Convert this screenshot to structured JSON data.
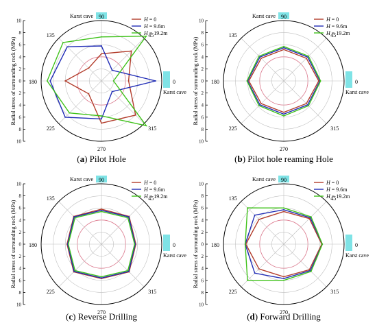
{
  "theme": {
    "colors": {
      "h0": "#b23b2a",
      "h96": "#1f2bb5",
      "h192": "#3fc21a",
      "circle": "#e07a8f",
      "highlight": "#7fe3e6",
      "grid": "#bfbfbf"
    }
  },
  "shared": {
    "radial_axis_label": "Radial stress of surrounding rock (MPa)",
    "radial_ticks_upper": [
      "10",
      "8",
      "6",
      "4",
      "2",
      "0"
    ],
    "radial_ticks_lower": [
      "2",
      "4",
      "6",
      "8",
      "10"
    ],
    "angle_labels": [
      "0",
      "45",
      "90",
      "135",
      "180",
      "225",
      "270",
      "315"
    ],
    "karst_label": "Karst cave",
    "legend_prefix": "H",
    "legend_values": [
      "= 0",
      "= 9.6m",
      "= 19.2m"
    ]
  },
  "panels": [
    {
      "letter": "(a)",
      "name": "Pilot Hole"
    },
    {
      "letter": "(b)",
      "name": "Pilot hole reaming Hole"
    },
    {
      "letter": "(c)",
      "name": "Reverse Drilling"
    },
    {
      "letter": "(d)",
      "name": "Forward Drilling"
    }
  ],
  "chart_data": [
    {
      "type": "polar-line",
      "title": "Pilot Hole",
      "angles_deg": [
        0,
        45,
        90,
        135,
        180,
        225,
        270,
        315
      ],
      "rlim": [
        0,
        10
      ],
      "reference_circle_r": 4,
      "series": [
        {
          "name": "H = 0",
          "values": [
            4.5,
            7,
            4.5,
            3,
            6,
            3,
            7,
            8
          ]
        },
        {
          "name": "H = 9.6m",
          "values": [
            9,
            2.5,
            5.8,
            8,
            8.5,
            8.5,
            6.3,
            2.5
          ]
        },
        {
          "name": "H = 19.2m",
          "values": [
            2,
            10.5,
            7.3,
            9,
            9,
            7.5,
            5.8,
            10.5
          ]
        }
      ]
    },
    {
      "type": "polar-line",
      "title": "Pilot hole reaming Hole",
      "angles_deg": [
        0,
        45,
        90,
        135,
        180,
        225,
        270,
        315
      ],
      "rlim": [
        0,
        10
      ],
      "reference_circle_r": 4,
      "series": [
        {
          "name": "H = 0",
          "values": [
            5.8,
            5.3,
            5.2,
            5.3,
            5.8,
            5.3,
            5.2,
            5.3
          ]
        },
        {
          "name": "H = 9.6m",
          "values": [
            6.0,
            5.6,
            5.5,
            5.6,
            6.0,
            5.6,
            5.5,
            5.6
          ]
        },
        {
          "name": "H = 19.2m",
          "values": [
            6.1,
            5.8,
            5.7,
            5.8,
            6.1,
            5.8,
            5.8,
            5.8
          ]
        }
      ]
    },
    {
      "type": "polar-line",
      "title": "Reverse Drilling",
      "angles_deg": [
        0,
        45,
        90,
        135,
        180,
        225,
        270,
        315
      ],
      "rlim": [
        0,
        10
      ],
      "reference_circle_r": 4,
      "series": [
        {
          "name": "H = 0",
          "values": [
            5.7,
            6.5,
            5.8,
            6.5,
            5.7,
            6.5,
            5.7,
            6.5
          ]
        },
        {
          "name": "H = 9.6m",
          "values": [
            5.6,
            6.4,
            5.6,
            6.4,
            5.6,
            6.4,
            5.6,
            6.4
          ]
        },
        {
          "name": "H = 19.2m",
          "values": [
            5.5,
            6.2,
            5.4,
            6.2,
            5.5,
            6.2,
            5.4,
            6.2
          ]
        }
      ]
    },
    {
      "type": "polar-line",
      "title": "Forward Drilling",
      "angles_deg": [
        0,
        45,
        90,
        135,
        180,
        225,
        270,
        315
      ],
      "rlim": [
        0,
        10
      ],
      "reference_circle_r": 4,
      "series": [
        {
          "name": "H = 0",
          "values": [
            6.3,
            6.0,
            5.4,
            5.8,
            6.3,
            5.8,
            5.4,
            6.0
          ]
        },
        {
          "name": "H = 9.6m",
          "values": [
            6.4,
            6.2,
            5.7,
            6.8,
            6.4,
            6.8,
            5.7,
            6.2
          ]
        },
        {
          "name": "H = 19.2m",
          "values": [
            6.4,
            6.4,
            6.0,
            8.5,
            6.4,
            8.5,
            6.0,
            6.4
          ]
        }
      ]
    }
  ]
}
